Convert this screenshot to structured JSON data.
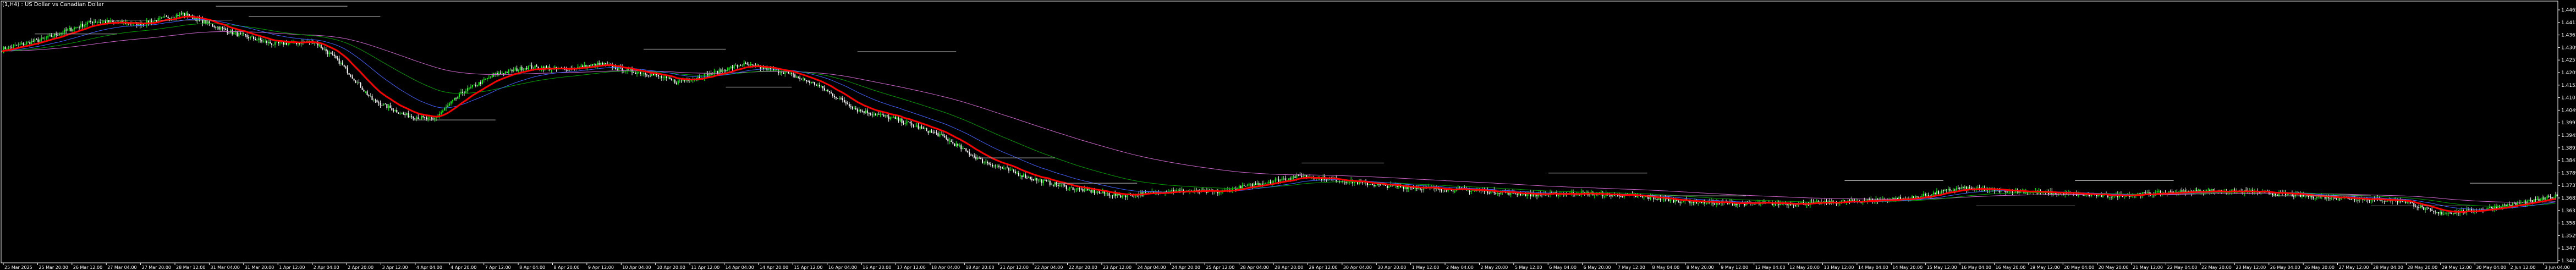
{
  "colors": {
    "background": "#000000",
    "axis": "#ffffff",
    "candle_up": "#00ff00",
    "candle_down": "#ffffff",
    "ma_fast": "#ff0000",
    "ma_mid": "#00a000",
    "ma_slow": "#4060ff",
    "ma_long": "#cc66cc",
    "level_line": "#c0c0c0"
  },
  "chart_data": {
    "type": "candlestick",
    "title": "(1,H4) : US Dollar vs Canadian Dollar",
    "ylim": [
      1.3435,
      1.447
    ],
    "yticks": [
      "1.44655",
      "1.44135",
      "1.43615",
      "1.43095",
      "1.42575",
      "1.42055",
      "1.41535",
      "1.41015",
      "1.40495",
      "1.39975",
      "1.39455",
      "1.38935",
      "1.38415",
      "1.37895",
      "1.37375",
      "1.36855",
      "1.36335",
      "1.35815",
      "1.35295",
      "1.34775",
      "1.34255"
    ],
    "xticks": [
      "25 Mar 2025",
      "25 Mar 20:00",
      "26 Mar 12:00",
      "27 Mar 04:00",
      "27 Mar 20:00",
      "28 Mar 12:00",
      "31 Mar 04:00",
      "31 Mar 20:00",
      "1 Apr 12:00",
      "2 Apr 04:00",
      "2 Apr 20:00",
      "3 Apr 12:00",
      "4 Apr 04:00",
      "4 Apr 20:00",
      "7 Apr 12:00",
      "8 Apr 04:00",
      "8 Apr 20:00",
      "9 Apr 12:00",
      "10 Apr 04:00",
      "10 Apr 20:00",
      "11 Apr 12:00",
      "14 Apr 04:00",
      "14 Apr 20:00",
      "15 Apr 12:00",
      "16 Apr 04:00",
      "16 Apr 20:00",
      "17 Apr 12:00",
      "18 Apr 04:00",
      "18 Apr 20:00",
      "21 Apr 12:00",
      "22 Apr 04:00",
      "22 Apr 20:00",
      "23 Apr 12:00",
      "24 Apr 04:00",
      "24 Apr 20:00",
      "25 Apr 12:00",
      "28 Apr 04:00",
      "28 Apr 20:00",
      "29 Apr 12:00",
      "30 Apr 04:00",
      "30 Apr 20:00",
      "1 May 12:00",
      "2 May 04:00",
      "2 May 20:00",
      "5 May 12:00",
      "6 May 04:00",
      "6 May 20:00",
      "7 May 12:00",
      "8 May 04:00",
      "8 May 20:00",
      "9 May 12:00",
      "12 May 04:00",
      "12 May 20:00",
      "13 May 12:00",
      "14 May 04:00",
      "14 May 20:00",
      "15 May 12:00",
      "16 May 04:00",
      "16 May 20:00",
      "19 May 12:00",
      "20 May 04:00",
      "20 May 20:00",
      "21 May 12:00",
      "22 May 04:00",
      "22 May 20:00",
      "23 May 12:00",
      "26 May 04:00",
      "26 May 20:00",
      "27 May 12:00",
      "28 May 04:00",
      "28 May 20:00",
      "29 May 12:00",
      "30 May 04:00",
      "2 Jun 12:00",
      "3 Jun 04:00"
    ],
    "anchors": [
      [
        0,
        1.428
      ],
      [
        25,
        1.432
      ],
      [
        55,
        1.439
      ],
      [
        85,
        1.438
      ],
      [
        110,
        1.442
      ],
      [
        120,
        1.4395
      ],
      [
        140,
        1.4345
      ],
      [
        165,
        1.43
      ],
      [
        190,
        1.431
      ],
      [
        205,
        1.423
      ],
      [
        225,
        1.408
      ],
      [
        245,
        1.402
      ],
      [
        262,
        1.4
      ],
      [
        280,
        1.411
      ],
      [
        300,
        1.418
      ],
      [
        320,
        1.421
      ],
      [
        340,
        1.42
      ],
      [
        365,
        1.422
      ],
      [
        380,
        1.4195
      ],
      [
        395,
        1.418
      ],
      [
        410,
        1.415
      ],
      [
        430,
        1.418
      ],
      [
        450,
        1.422
      ],
      [
        475,
        1.419
      ],
      [
        495,
        1.414
      ],
      [
        520,
        1.404
      ],
      [
        545,
        1.4
      ],
      [
        570,
        1.394
      ],
      [
        595,
        1.384
      ],
      [
        625,
        1.377
      ],
      [
        650,
        1.373
      ],
      [
        680,
        1.37
      ],
      [
        710,
        1.372
      ],
      [
        740,
        1.3715
      ],
      [
        765,
        1.375
      ],
      [
        790,
        1.378
      ],
      [
        815,
        1.376
      ],
      [
        840,
        1.374
      ],
      [
        865,
        1.373
      ],
      [
        900,
        1.372
      ],
      [
        930,
        1.3705
      ],
      [
        960,
        1.371
      ],
      [
        990,
        1.37
      ],
      [
        1020,
        1.368
      ],
      [
        1050,
        1.367
      ],
      [
        1080,
        1.367
      ],
      [
        1100,
        1.367
      ],
      [
        1130,
        1.368
      ],
      [
        1160,
        1.369
      ],
      [
        1190,
        1.373
      ],
      [
        1220,
        1.372
      ],
      [
        1250,
        1.371
      ],
      [
        1280,
        1.37
      ],
      [
        1310,
        1.371
      ],
      [
        1340,
        1.372
      ],
      [
        1370,
        1.3715
      ],
      [
        1400,
        1.37
      ],
      [
        1430,
        1.369
      ],
      [
        1460,
        1.368
      ],
      [
        1480,
        1.363
      ],
      [
        1500,
        1.364
      ],
      [
        1520,
        1.366
      ],
      [
        1540,
        1.368
      ],
      [
        1553,
        1.37
      ]
    ],
    "level_lines": [
      [
        130,
        210,
        1.445
      ],
      [
        150,
        230,
        1.441
      ],
      [
        60,
        140,
        1.4395
      ],
      [
        20,
        70,
        1.434
      ],
      [
        250,
        300,
        1.4
      ],
      [
        390,
        440,
        1.428
      ],
      [
        520,
        580,
        1.427
      ],
      [
        440,
        480,
        1.413
      ],
      [
        590,
        640,
        1.385
      ],
      [
        640,
        690,
        1.375
      ],
      [
        790,
        840,
        1.383
      ],
      [
        940,
        1000,
        1.379
      ],
      [
        1000,
        1060,
        1.37
      ],
      [
        1120,
        1180,
        1.376
      ],
      [
        1200,
        1260,
        1.366
      ],
      [
        1260,
        1320,
        1.376
      ],
      [
        1380,
        1440,
        1.37
      ],
      [
        1440,
        1500,
        1.366
      ],
      [
        1500,
        1550,
        1.375
      ]
    ]
  }
}
